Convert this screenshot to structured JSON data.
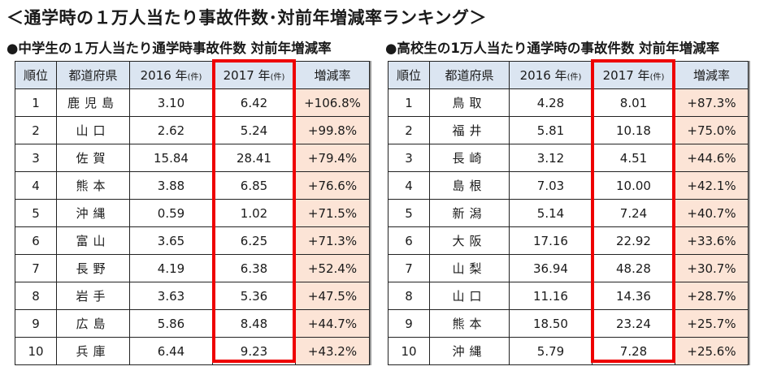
{
  "title": "＜通学時の１万人当たり事故件数･対前年増減率ランキング＞",
  "junior_high": {
    "subtitle": "●中学生の１万人当たり通学時事故件数 対前年増減率",
    "headers": {
      "rank": "順位",
      "prefecture": "都道府県",
      "y2016": "2016 年",
      "y2017": "2017 年",
      "unit": "(件)",
      "rate": "増減率"
    },
    "rows": [
      {
        "rank": "1",
        "prefecture": "鹿児島",
        "y2016": "3.10",
        "y2017": "6.42",
        "rate": "+106.8%"
      },
      {
        "rank": "2",
        "prefecture": "山口",
        "y2016": "2.62",
        "y2017": "5.24",
        "rate": "+99.8%"
      },
      {
        "rank": "3",
        "prefecture": "佐賀",
        "y2016": "15.84",
        "y2017": "28.41",
        "rate": "+79.4%"
      },
      {
        "rank": "4",
        "prefecture": "熊本",
        "y2016": "3.88",
        "y2017": "6.85",
        "rate": "+76.6%"
      },
      {
        "rank": "5",
        "prefecture": "沖縄",
        "y2016": "0.59",
        "y2017": "1.02",
        "rate": "+71.5%"
      },
      {
        "rank": "6",
        "prefecture": "富山",
        "y2016": "3.65",
        "y2017": "6.25",
        "rate": "+71.3%"
      },
      {
        "rank": "7",
        "prefecture": "長野",
        "y2016": "4.19",
        "y2017": "6.38",
        "rate": "+52.4%"
      },
      {
        "rank": "8",
        "prefecture": "岩手",
        "y2016": "3.63",
        "y2017": "5.36",
        "rate": "+47.5%"
      },
      {
        "rank": "9",
        "prefecture": "広島",
        "y2016": "5.86",
        "y2017": "8.48",
        "rate": "+44.7%"
      },
      {
        "rank": "10",
        "prefecture": "兵庫",
        "y2016": "6.44",
        "y2017": "9.23",
        "rate": "+43.2%"
      }
    ]
  },
  "high_school": {
    "subtitle": "●高校生の1万人当たり通学時の事故件数 対前年増減率",
    "headers": {
      "rank": "順位",
      "prefecture": "都道府県",
      "y2016": "2016 年",
      "y2017": "2017 年",
      "unit": "(件)",
      "rate": "増減率"
    },
    "rows": [
      {
        "rank": "1",
        "prefecture": "鳥取",
        "y2016": "4.28",
        "y2017": "8.01",
        "rate": "+87.3%"
      },
      {
        "rank": "2",
        "prefecture": "福井",
        "y2016": "5.81",
        "y2017": "10.18",
        "rate": "+75.0%"
      },
      {
        "rank": "3",
        "prefecture": "長崎",
        "y2016": "3.12",
        "y2017": "4.51",
        "rate": "+44.6%"
      },
      {
        "rank": "4",
        "prefecture": "島根",
        "y2016": "7.03",
        "y2017": "10.00",
        "rate": "+42.1%"
      },
      {
        "rank": "5",
        "prefecture": "新潟",
        "y2016": "5.14",
        "y2017": "7.24",
        "rate": "+40.7%"
      },
      {
        "rank": "6",
        "prefecture": "大阪",
        "y2016": "17.16",
        "y2017": "22.92",
        "rate": "+33.6%"
      },
      {
        "rank": "7",
        "prefecture": "山梨",
        "y2016": "36.94",
        "y2017": "48.28",
        "rate": "+30.7%"
      },
      {
        "rank": "8",
        "prefecture": "山口",
        "y2016": "11.16",
        "y2017": "14.36",
        "rate": "+28.7%"
      },
      {
        "rank": "9",
        "prefecture": "熊本",
        "y2016": "18.50",
        "y2017": "23.24",
        "rate": "+25.7%"
      },
      {
        "rank": "10",
        "prefecture": "沖縄",
        "y2016": "5.79",
        "y2017": "7.28",
        "rate": "+25.6%"
      }
    ]
  },
  "colors": {
    "header_bg": "#dbe5f1",
    "rate_bg": "#fce4d6",
    "highlight_border": "#ee0000"
  }
}
